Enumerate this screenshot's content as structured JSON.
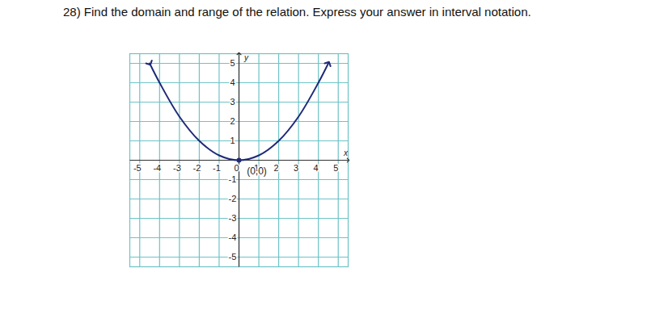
{
  "chart_data": {
    "type": "line",
    "title": "28) Find the domain and range of the relation.  Express your answer in interval notation.",
    "xlabel": "x",
    "ylabel": "y",
    "series": [
      {
        "name": null,
        "color": "#1f2a78",
        "x": [
          -4.5,
          -4,
          -3,
          -2,
          -1,
          0,
          1,
          2,
          3,
          4,
          4.5
        ],
        "values": [
          5,
          4,
          2.25,
          1,
          0.25,
          0,
          0.25,
          1,
          2.25,
          4,
          5
        ]
      }
    ],
    "annotations": [
      {
        "text": "(0,0)",
        "x": 0,
        "y": 0
      }
    ],
    "xlim": [
      -5.5,
      5.5
    ],
    "ylim": [
      -5.5,
      5.5
    ],
    "xticks": [
      -5,
      -4,
      -3,
      -2,
      -1,
      0,
      1,
      2,
      3,
      4,
      5
    ],
    "yticks": [
      -5,
      -4,
      -3,
      -2,
      -1,
      1,
      2,
      3,
      4,
      5
    ],
    "grid": true
  }
}
